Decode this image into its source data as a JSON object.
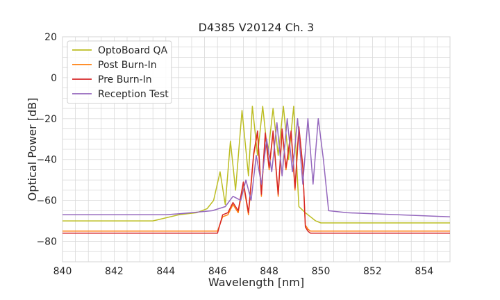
{
  "chart_data": {
    "type": "line",
    "title": "D4385 V20124 Ch. 3",
    "xlabel": "Wavelength [nm]",
    "ylabel": "Optical Power [dB]",
    "xlim": [
      840,
      855
    ],
    "ylim": [
      -90,
      20
    ],
    "xticks": [
      840,
      842,
      844,
      846,
      848,
      850,
      852,
      854
    ],
    "yticks": [
      -80,
      -60,
      -40,
      -20,
      0,
      20
    ],
    "grid": true,
    "legend_position": "top-left",
    "series": [
      {
        "name": "OptoBoard QA",
        "color": "#bcbd22",
        "x": [
          840,
          843.5,
          844.5,
          845.2,
          845.6,
          845.85,
          846.1,
          846.3,
          846.5,
          846.7,
          846.95,
          847.2,
          847.35,
          847.55,
          847.75,
          847.95,
          848.15,
          848.35,
          848.55,
          848.75,
          848.95,
          849.15,
          849.4,
          849.6,
          849.8,
          850.0,
          850.5,
          855
        ],
        "y": [
          -70,
          -70,
          -67,
          -66,
          -64,
          -60,
          -46,
          -62,
          -31,
          -55,
          -16,
          -48,
          -14,
          -38,
          -14,
          -38,
          -15,
          -38,
          -14,
          -40,
          -14,
          -63,
          -66,
          -68,
          -70,
          -71,
          -71,
          -71
        ]
      },
      {
        "name": "Post Burn-In",
        "color": "#ff7f0e",
        "x": [
          840,
          846.0,
          846.2,
          846.4,
          846.6,
          846.8,
          847.0,
          847.2,
          847.4,
          847.55,
          847.7,
          847.85,
          848.0,
          848.15,
          848.35,
          848.5,
          848.65,
          848.85,
          849.0,
          849.15,
          849.3,
          849.4,
          849.5,
          849.6,
          849.8,
          850.0,
          855
        ],
        "y": [
          -75,
          -75,
          -68,
          -67,
          -62,
          -66,
          -52,
          -67,
          -38,
          -27,
          -58,
          -28,
          -45,
          -27,
          -58,
          -26,
          -45,
          -27,
          -55,
          -25,
          -44,
          -72,
          -74,
          -75,
          -75,
          -75,
          -75
        ]
      },
      {
        "name": "Pre Burn-In",
        "color": "#d62728",
        "x": [
          840,
          846.0,
          846.2,
          846.4,
          846.6,
          846.8,
          847.0,
          847.2,
          847.4,
          847.55,
          847.7,
          847.85,
          848.0,
          848.15,
          848.35,
          848.5,
          848.65,
          848.85,
          849.0,
          849.15,
          849.3,
          849.4,
          849.5,
          849.6,
          849.8,
          850.0,
          855
        ],
        "y": [
          -76,
          -76,
          -67,
          -66,
          -61,
          -65,
          -51,
          -66,
          -37,
          -26,
          -57,
          -27,
          -44,
          -26,
          -57,
          -25,
          -44,
          -26,
          -54,
          -24,
          -43,
          -73,
          -75,
          -76,
          -76,
          -76,
          -76
        ]
      },
      {
        "name": "Reception Test",
        "color": "#9467bd",
        "x": [
          840,
          844.0,
          845.0,
          845.8,
          846.3,
          846.6,
          846.9,
          847.1,
          847.3,
          847.5,
          847.7,
          847.9,
          848.1,
          848.3,
          848.5,
          848.7,
          848.9,
          849.1,
          849.3,
          849.5,
          849.7,
          849.9,
          850.1,
          850.3,
          851.0,
          855
        ],
        "y": [
          -67,
          -67,
          -66,
          -65,
          -63,
          -58,
          -60,
          -50,
          -60,
          -38,
          -52,
          -30,
          -46,
          -22,
          -48,
          -20,
          -46,
          -20,
          -52,
          -20,
          -52,
          -20,
          -40,
          -65,
          -66,
          -68
        ]
      }
    ]
  }
}
